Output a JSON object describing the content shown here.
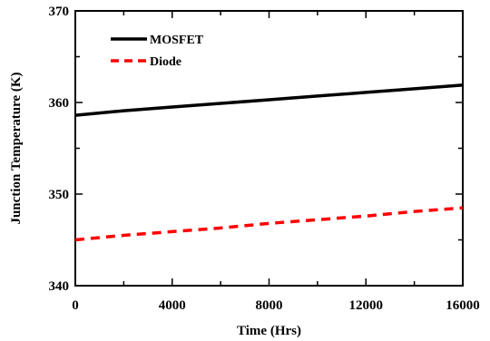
{
  "chart_data": {
    "type": "line",
    "xlabel": "Time (Hrs)",
    "ylabel": "Junction Temperature (K)",
    "xlim": [
      0,
      16000
    ],
    "ylim": [
      340,
      370
    ],
    "xticks": [
      0,
      4000,
      8000,
      12000,
      16000
    ],
    "xtick_labels": [
      "0",
      "4000",
      "8000",
      "12000",
      "16000"
    ],
    "x_minor_ticks": [
      2000,
      6000,
      10000,
      14000
    ],
    "yticks": [
      340,
      350,
      360,
      370
    ],
    "ytick_labels": [
      "340",
      "350",
      "360",
      "370"
    ],
    "y_minor_ticks": [
      345,
      355,
      365
    ],
    "grid": false,
    "legend_position": "top-left",
    "series": [
      {
        "name": "MOSFET",
        "color": "#000000",
        "line_style": "solid",
        "x": [
          0,
          2000,
          4000,
          6000,
          8000,
          10000,
          12000,
          14000,
          16000
        ],
        "y": [
          358.6,
          359.1,
          359.5,
          359.9,
          360.3,
          360.7,
          361.1,
          361.5,
          361.9
        ]
      },
      {
        "name": "Diode",
        "color": "#ff0000",
        "line_style": "dashed",
        "x": [
          0,
          2000,
          4000,
          6000,
          8000,
          10000,
          12000,
          14000,
          16000
        ],
        "y": [
          345.0,
          345.5,
          345.9,
          346.3,
          346.8,
          347.2,
          347.6,
          348.1,
          348.5
        ]
      }
    ]
  }
}
